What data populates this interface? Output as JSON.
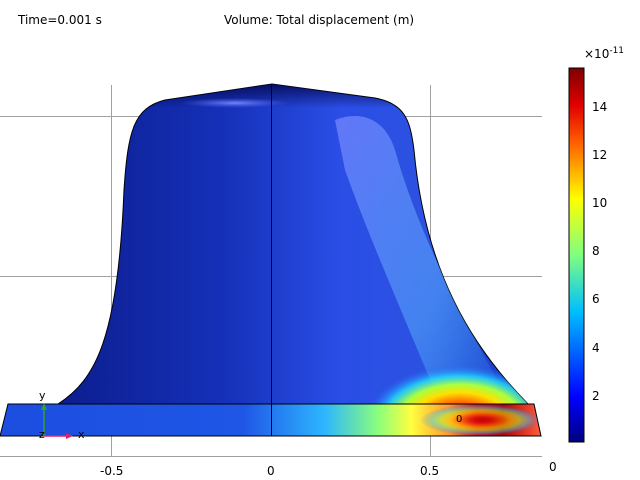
{
  "header": {
    "time_label": "Time=0.001 s",
    "plot_title": "Volume: Total displacement (m)"
  },
  "axis": {
    "x_ticks": [
      "-0.5",
      "0",
      "0.5"
    ],
    "corner_label": "0"
  },
  "triad": {
    "y_label": "y",
    "z_label": "z",
    "x_label": "x",
    "x_color": "#e0206a",
    "y_color": "#30a030"
  },
  "colorbar": {
    "multiplier": "×10",
    "exponent": "-11",
    "ticks": [
      "14",
      "12",
      "10",
      "8",
      "6",
      "4",
      "2"
    ],
    "range": [
      0,
      15.5
    ],
    "colormap": "rainbow"
  },
  "annotations": {
    "point_label": "0"
  },
  "colors": {
    "shape_dark_blue": "#0a1a8a",
    "shape_mid_blue": "#1b3bd0",
    "grid": "#a0a0a0"
  }
}
